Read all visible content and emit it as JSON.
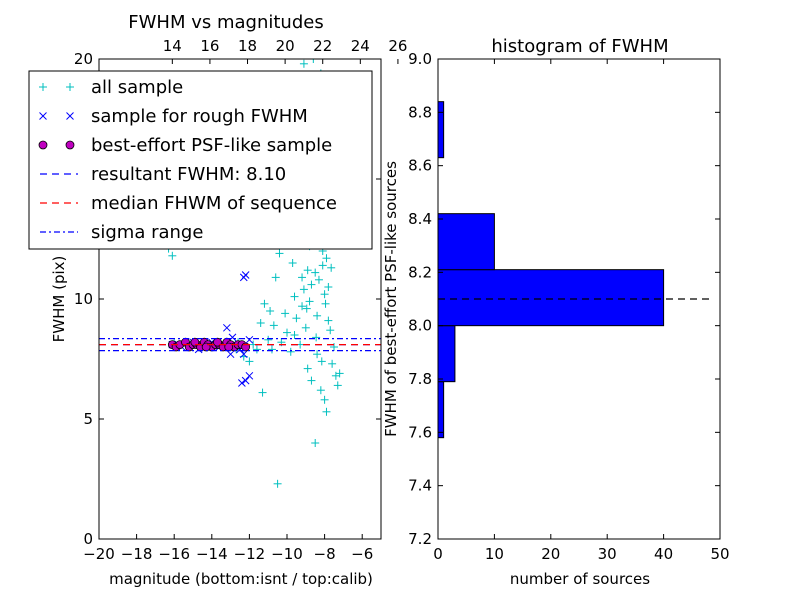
{
  "chart_data": [
    {
      "type": "scatter",
      "title": "FWHM vs magnitudes",
      "xlabel": "magnitude (bottom:isnt / top:calib)",
      "ylabel": "FWHM (pix)",
      "xlim": [
        -20,
        -5
      ],
      "ylim": [
        0,
        20
      ],
      "x_ticks": [
        -20,
        -18,
        -16,
        -14,
        -12,
        -10,
        -8,
        -6
      ],
      "x_tick_labels": [
        "−20",
        "−18",
        "−16",
        "−14",
        "−12",
        "−10",
        "−8",
        "−6"
      ],
      "y_ticks": [
        0,
        5,
        10,
        15,
        20
      ],
      "y_tick_labels": [
        "0",
        "5",
        "10",
        "15",
        "20"
      ],
      "top_axis": {
        "offset": 30.1,
        "ticks": [
          14,
          16,
          18,
          20,
          22,
          24,
          26
        ],
        "tick_labels": [
          "14",
          "16",
          "18",
          "20",
          "22",
          "24",
          "26"
        ]
      },
      "legend": {
        "placement": "upper-left",
        "entries": [
          {
            "label": "all sample",
            "marker": "plus",
            "color": "#00bfbf"
          },
          {
            "label": "sample for rough FWHM",
            "marker": "x",
            "color": "#0000ff"
          },
          {
            "label": "best-effort PSF-like sample",
            "marker": "circle",
            "color": "#bf00bf"
          },
          {
            "label": "resultant FWHM: 8.10",
            "marker": "dashed",
            "color": "#0000ff"
          },
          {
            "label": "median FHWM of sequence",
            "marker": "dashed",
            "color": "#ff0000"
          },
          {
            "label": "sigma range",
            "marker": "dashdot",
            "color": "#0000ff"
          }
        ]
      },
      "lines": {
        "resultant": {
          "y": 8.1,
          "color": "#0000ff",
          "style": "dashed"
        },
        "median": {
          "y": 8.1,
          "color": "#ff0000",
          "style": "dashed"
        },
        "sigma_upper": {
          "y": 8.35,
          "color": "#0000ff",
          "style": "dashdot"
        },
        "sigma_lower": {
          "y": 7.85,
          "color": "#0000ff",
          "style": "dashdot"
        }
      },
      "series": [
        {
          "name": "all sample",
          "marker": "plus",
          "color": "#00bfbf",
          "points": [
            [
              -16.3,
              12.1
            ],
            [
              -16.1,
              11.8
            ],
            [
              -16.0,
              8.2
            ],
            [
              -15.7,
              8.1
            ],
            [
              -15.2,
              8.1
            ],
            [
              -14.8,
              8.2
            ],
            [
              -14.1,
              8.1
            ],
            [
              -13.6,
              8.2
            ],
            [
              -13.0,
              8.0
            ],
            [
              -12.7,
              7.9
            ],
            [
              -12.3,
              7.6
            ],
            [
              -12.0,
              7.4
            ],
            [
              -11.8,
              8.1
            ],
            [
              -11.6,
              7.9
            ],
            [
              -11.3,
              6.1
            ],
            [
              -11.0,
              8.3
            ],
            [
              -10.8,
              7.9
            ],
            [
              -10.5,
              2.3
            ],
            [
              -10.3,
              8.2
            ],
            [
              -10.0,
              8.6
            ],
            [
              -9.8,
              7.8
            ],
            [
              -9.6,
              8.5
            ],
            [
              -9.5,
              9.2
            ],
            [
              -9.3,
              8.1
            ],
            [
              -9.2,
              9.7
            ],
            [
              -9.1,
              10.4
            ],
            [
              -9.0,
              8.8
            ],
            [
              -8.9,
              11.2
            ],
            [
              -8.8,
              9.9
            ],
            [
              -8.7,
              10.6
            ],
            [
              -8.6,
              12.4
            ],
            [
              -8.5,
              11.1
            ],
            [
              -8.4,
              9.3
            ],
            [
              -8.3,
              10.8
            ],
            [
              -8.2,
              13.5
            ],
            [
              -8.1,
              12.0
            ],
            [
              -8.0,
              10.2
            ],
            [
              -7.9,
              11.7
            ],
            [
              -7.8,
              9.1
            ],
            [
              -7.7,
              8.7
            ],
            [
              -7.6,
              7.3
            ],
            [
              -7.5,
              8.0
            ],
            [
              -7.4,
              6.8
            ],
            [
              -7.3,
              6.4
            ],
            [
              -7.2,
              6.9
            ],
            [
              -8.9,
              7.1
            ],
            [
              -8.7,
              6.6
            ],
            [
              -8.4,
              7.7
            ],
            [
              -8.2,
              6.2
            ],
            [
              -8.0,
              5.8
            ],
            [
              -7.9,
              5.3
            ],
            [
              -8.5,
              4.0
            ],
            [
              -8.8,
              14.2
            ],
            [
              -8.6,
              15.8
            ],
            [
              -8.3,
              16.9
            ],
            [
              -8.1,
              15.1
            ],
            [
              -8.9,
              13.3
            ],
            [
              -9.4,
              12.8
            ],
            [
              -9.7,
              11.5
            ],
            [
              -9.9,
              13.9
            ],
            [
              -10.2,
              12.6
            ],
            [
              -10.4,
              11.9
            ],
            [
              -10.6,
              10.9
            ],
            [
              -10.9,
              9.5
            ],
            [
              -11.2,
              9.8
            ],
            [
              -11.4,
              9.0
            ],
            [
              -9.5,
              14.8
            ],
            [
              -9.0,
              16.2
            ],
            [
              -8.7,
              17.7
            ],
            [
              -8.4,
              18.6
            ],
            [
              -8.2,
              19.4
            ],
            [
              -9.1,
              19.8
            ],
            [
              -8.6,
              20.0
            ],
            [
              -8.0,
              18.1
            ],
            [
              -7.8,
              17.0
            ],
            [
              -7.7,
              14.4
            ],
            [
              -7.6,
              12.9
            ],
            [
              -7.9,
              13.6
            ],
            [
              -8.8,
              12.2
            ],
            [
              -8.5,
              13.0
            ],
            [
              -8.3,
              12.6
            ],
            [
              -8.1,
              11.4
            ],
            [
              -7.8,
              10.5
            ],
            [
              -9.2,
              10.9
            ],
            [
              -9.6,
              10.1
            ],
            [
              -10.1,
              9.4
            ],
            [
              -10.7,
              8.9
            ],
            [
              -12.6,
              8.2
            ],
            [
              -13.3,
              8.0
            ],
            [
              -15.9,
              8.0
            ],
            [
              -8.95,
              9.6
            ],
            [
              -8.45,
              8.4
            ],
            [
              -8.15,
              7.4
            ],
            [
              -7.95,
              9.8
            ],
            [
              -7.65,
              11.3
            ],
            [
              -8.55,
              16.4
            ],
            [
              -8.35,
              14.7
            ],
            [
              -9.35,
              15.6
            ],
            [
              -9.85,
              17.3
            ],
            [
              -8.75,
              18.9
            ]
          ]
        },
        {
          "name": "sample for rough FWHM",
          "marker": "x",
          "color": "#0000ff",
          "points": [
            [
              -16.1,
              8.1
            ],
            [
              -15.6,
              8.0
            ],
            [
              -15.0,
              8.2
            ],
            [
              -14.5,
              8.1
            ],
            [
              -14.0,
              8.2
            ],
            [
              -13.6,
              8.0
            ],
            [
              -13.1,
              8.1
            ],
            [
              -12.8,
              8.0
            ],
            [
              -12.5,
              7.9
            ],
            [
              -12.3,
              7.7
            ],
            [
              -13.2,
              8.8
            ],
            [
              -12.9,
              8.4
            ],
            [
              -12.4,
              6.5
            ],
            [
              -12.2,
              6.6
            ],
            [
              -12.0,
              6.8
            ],
            [
              -12.3,
              10.9
            ],
            [
              -12.2,
              11.0
            ],
            [
              -12.0,
              8.3
            ],
            [
              -13.0,
              7.7
            ],
            [
              -14.7,
              7.9
            ]
          ]
        },
        {
          "name": "best-effort PSF-like sample",
          "marker": "circle",
          "color": "#bf00bf",
          "points": [
            [
              -16.1,
              8.1
            ],
            [
              -15.9,
              8.0
            ],
            [
              -15.7,
              8.1
            ],
            [
              -15.4,
              8.2
            ],
            [
              -15.2,
              8.0
            ],
            [
              -15.0,
              8.1
            ],
            [
              -14.8,
              8.1
            ],
            [
              -14.6,
              8.0
            ],
            [
              -14.4,
              8.2
            ],
            [
              -14.2,
              8.1
            ],
            [
              -14.0,
              8.0
            ],
            [
              -13.8,
              8.1
            ],
            [
              -13.6,
              8.1
            ],
            [
              -13.4,
              8.0
            ],
            [
              -13.2,
              8.2
            ],
            [
              -13.0,
              8.1
            ],
            [
              -12.8,
              8.0
            ],
            [
              -12.6,
              8.1
            ],
            [
              -12.4,
              8.1
            ],
            [
              -12.2,
              8.0
            ],
            [
              -14.9,
              8.2
            ],
            [
              -14.3,
              8.0
            ],
            [
              -13.7,
              8.2
            ],
            [
              -13.1,
              8.0
            ]
          ]
        }
      ]
    },
    {
      "type": "bar",
      "orientation": "horizontal",
      "title": "histogram of FWHM",
      "xlabel": "number of sources",
      "ylabel": "FWHM of best-effort PSF-like sources",
      "xlim": [
        0,
        50
      ],
      "ylim": [
        7.2,
        9.0
      ],
      "x_ticks": [
        0,
        10,
        20,
        30,
        40,
        50
      ],
      "x_tick_labels": [
        "0",
        "10",
        "20",
        "30",
        "40",
        "50"
      ],
      "y_ticks": [
        7.2,
        7.4,
        7.6,
        7.8,
        8.0,
        8.2,
        8.4,
        8.6,
        8.8,
        9.0
      ],
      "y_tick_labels": [
        "7.2",
        "7.4",
        "7.6",
        "7.8",
        "8.0",
        "8.2",
        "8.4",
        "8.6",
        "8.8",
        "9.0"
      ],
      "bar_color": "#0000ff",
      "bins": [
        {
          "low": 7.58,
          "high": 7.79,
          "count": 1
        },
        {
          "low": 7.79,
          "high": 8.0,
          "count": 3
        },
        {
          "low": 8.0,
          "high": 8.21,
          "count": 40
        },
        {
          "low": 8.21,
          "high": 8.42,
          "count": 10
        },
        {
          "low": 8.63,
          "high": 8.84,
          "count": 1
        }
      ],
      "reference_line": {
        "y": 8.1,
        "style": "dashed",
        "color": "#000000",
        "x_extent": [
          0,
          50
        ]
      }
    }
  ]
}
